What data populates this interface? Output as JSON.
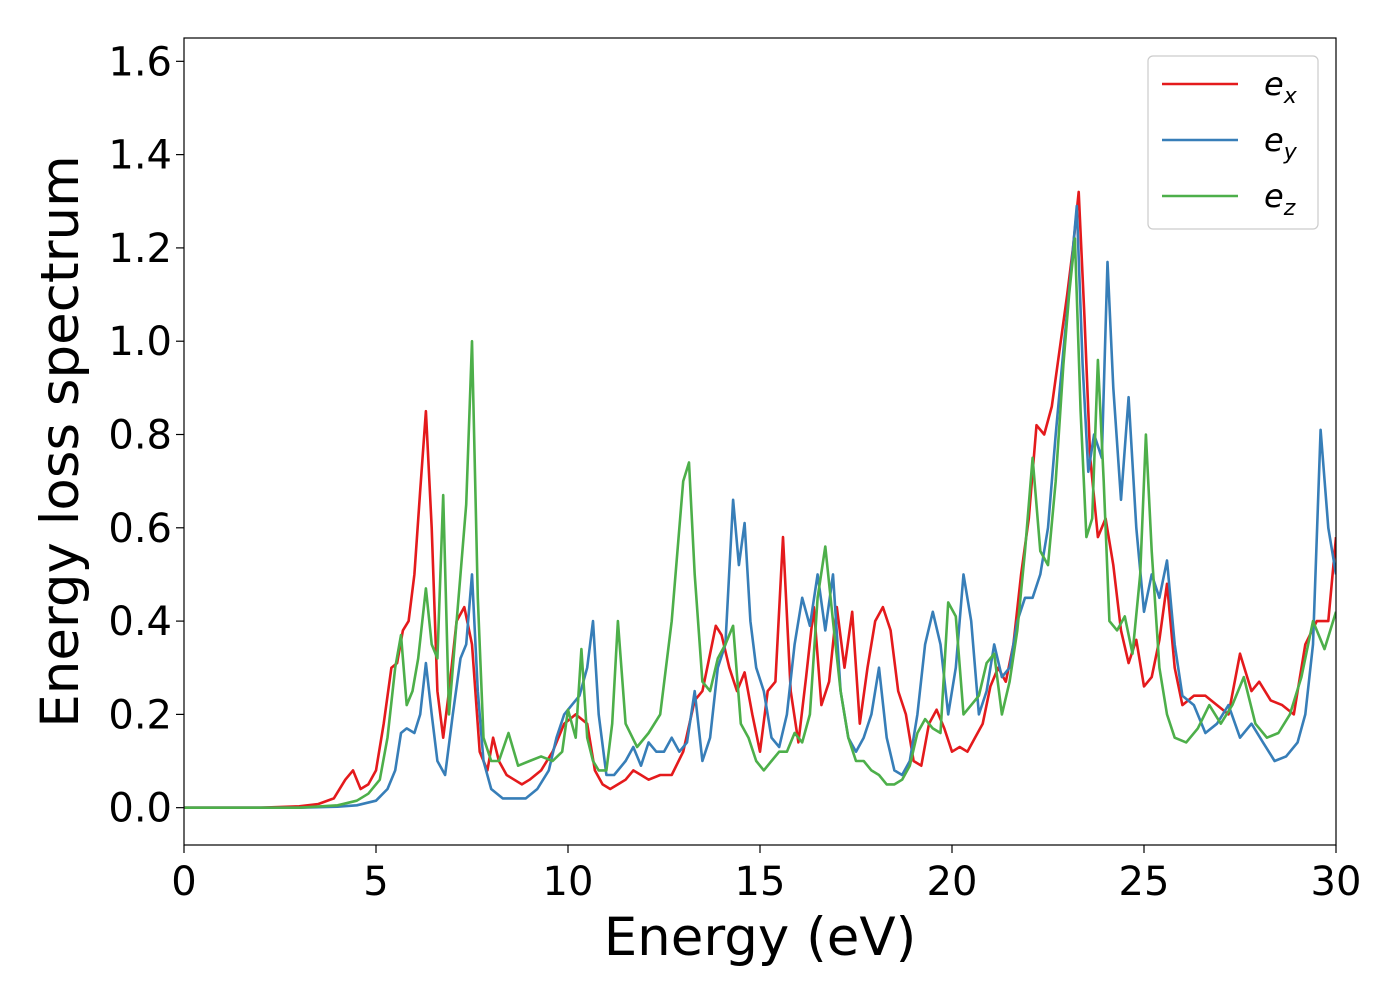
{
  "chart_data": {
    "type": "line",
    "xlabel": "Energy (eV)",
    "ylabel": "Energy loss spectrum",
    "xlim": [
      0,
      30
    ],
    "ylim": [
      -0.08,
      1.65
    ],
    "grid": false,
    "legend_position": "top-right",
    "xticks": [
      0,
      5,
      10,
      15,
      20,
      25,
      30
    ],
    "xtick_labels": [
      "0",
      "5",
      "10",
      "15",
      "20",
      "25",
      "30"
    ],
    "yticks": [
      0.0,
      0.2,
      0.4,
      0.6,
      0.8,
      1.0,
      1.2,
      1.4,
      1.6
    ],
    "ytick_labels": [
      "0.0",
      "0.2",
      "0.4",
      "0.6",
      "0.8",
      "1.0",
      "1.2",
      "1.4",
      "1.6"
    ],
    "series": [
      {
        "name": "e",
        "subscript": "x",
        "color": "#e41a1c",
        "x": [
          0,
          1,
          2,
          3,
          3.5,
          3.9,
          4.2,
          4.4,
          4.6,
          4.8,
          5.0,
          5.2,
          5.4,
          5.55,
          5.7,
          5.85,
          6.0,
          6.15,
          6.3,
          6.45,
          6.6,
          6.75,
          6.9,
          7.1,
          7.3,
          7.5,
          7.7,
          7.9,
          8.05,
          8.2,
          8.4,
          8.6,
          8.8,
          9.0,
          9.3,
          9.6,
          9.9,
          10.2,
          10.5,
          10.7,
          10.9,
          11.1,
          11.3,
          11.5,
          11.7,
          11.9,
          12.1,
          12.4,
          12.7,
          13.0,
          13.3,
          13.5,
          13.7,
          13.85,
          14.0,
          14.2,
          14.4,
          14.6,
          14.8,
          15.0,
          15.2,
          15.4,
          15.6,
          15.8,
          16.0,
          16.2,
          16.4,
          16.6,
          16.8,
          17.0,
          17.2,
          17.4,
          17.6,
          17.8,
          18.0,
          18.2,
          18.4,
          18.6,
          18.8,
          19.0,
          19.2,
          19.4,
          19.6,
          19.8,
          20.0,
          20.2,
          20.4,
          20.6,
          20.8,
          21.0,
          21.2,
          21.4,
          21.6,
          21.8,
          22.0,
          22.2,
          22.4,
          22.6,
          22.8,
          23.0,
          23.15,
          23.3,
          23.45,
          23.6,
          23.8,
          24.0,
          24.2,
          24.4,
          24.6,
          24.8,
          25.0,
          25.2,
          25.4,
          25.6,
          25.8,
          26.0,
          26.3,
          26.6,
          26.9,
          27.2,
          27.5,
          27.8,
          28.0,
          28.3,
          28.6,
          28.9,
          29.2,
          29.5,
          29.8,
          30.0
        ],
        "y": [
          0.0,
          0.0,
          0.0,
          0.003,
          0.008,
          0.02,
          0.06,
          0.08,
          0.04,
          0.05,
          0.08,
          0.18,
          0.3,
          0.31,
          0.38,
          0.4,
          0.5,
          0.68,
          0.85,
          0.6,
          0.25,
          0.15,
          0.25,
          0.4,
          0.43,
          0.35,
          0.12,
          0.08,
          0.15,
          0.1,
          0.07,
          0.06,
          0.05,
          0.06,
          0.08,
          0.12,
          0.18,
          0.2,
          0.18,
          0.08,
          0.05,
          0.04,
          0.05,
          0.06,
          0.08,
          0.07,
          0.06,
          0.07,
          0.07,
          0.12,
          0.23,
          0.25,
          0.33,
          0.39,
          0.37,
          0.3,
          0.25,
          0.29,
          0.2,
          0.12,
          0.25,
          0.27,
          0.58,
          0.25,
          0.14,
          0.28,
          0.43,
          0.22,
          0.27,
          0.43,
          0.3,
          0.42,
          0.18,
          0.3,
          0.4,
          0.43,
          0.38,
          0.25,
          0.2,
          0.1,
          0.09,
          0.18,
          0.21,
          0.17,
          0.12,
          0.13,
          0.12,
          0.15,
          0.18,
          0.26,
          0.3,
          0.27,
          0.35,
          0.5,
          0.62,
          0.82,
          0.8,
          0.86,
          0.98,
          1.1,
          1.2,
          1.32,
          1.05,
          0.75,
          0.58,
          0.62,
          0.52,
          0.38,
          0.31,
          0.36,
          0.26,
          0.28,
          0.36,
          0.48,
          0.3,
          0.22,
          0.24,
          0.24,
          0.22,
          0.2,
          0.33,
          0.25,
          0.27,
          0.23,
          0.22,
          0.2,
          0.35,
          0.4,
          0.4,
          0.58
        ]
      },
      {
        "name": "e",
        "subscript": "y",
        "color": "#377eb8",
        "x": [
          0,
          1,
          2,
          3,
          4,
          4.5,
          5.0,
          5.3,
          5.5,
          5.65,
          5.8,
          6.0,
          6.15,
          6.3,
          6.45,
          6.6,
          6.8,
          7.0,
          7.2,
          7.35,
          7.5,
          7.65,
          7.8,
          8.0,
          8.3,
          8.6,
          8.9,
          9.2,
          9.5,
          9.7,
          9.9,
          10.1,
          10.3,
          10.5,
          10.65,
          10.8,
          11.0,
          11.2,
          11.5,
          11.7,
          11.9,
          12.1,
          12.3,
          12.5,
          12.7,
          12.9,
          13.1,
          13.3,
          13.5,
          13.7,
          13.9,
          14.1,
          14.3,
          14.45,
          14.6,
          14.75,
          14.9,
          15.1,
          15.3,
          15.5,
          15.7,
          15.9,
          16.1,
          16.3,
          16.5,
          16.7,
          16.9,
          17.1,
          17.3,
          17.5,
          17.7,
          17.9,
          18.1,
          18.3,
          18.5,
          18.7,
          18.9,
          19.1,
          19.3,
          19.5,
          19.7,
          19.9,
          20.1,
          20.3,
          20.5,
          20.7,
          20.9,
          21.1,
          21.3,
          21.5,
          21.7,
          21.9,
          22.1,
          22.3,
          22.5,
          22.7,
          22.9,
          23.1,
          23.25,
          23.4,
          23.55,
          23.7,
          23.9,
          24.05,
          24.2,
          24.4,
          24.6,
          24.8,
          25.0,
          25.2,
          25.4,
          25.6,
          25.8,
          26.0,
          26.3,
          26.6,
          26.9,
          27.2,
          27.5,
          27.8,
          28.1,
          28.4,
          28.7,
          29.0,
          29.2,
          29.4,
          29.6,
          29.8,
          30.0
        ],
        "y": [
          0.0,
          0.0,
          0.0,
          0.0,
          0.002,
          0.005,
          0.015,
          0.04,
          0.08,
          0.16,
          0.17,
          0.16,
          0.2,
          0.31,
          0.2,
          0.1,
          0.07,
          0.2,
          0.32,
          0.35,
          0.5,
          0.25,
          0.1,
          0.04,
          0.02,
          0.02,
          0.02,
          0.04,
          0.08,
          0.15,
          0.2,
          0.22,
          0.24,
          0.3,
          0.4,
          0.2,
          0.07,
          0.07,
          0.1,
          0.13,
          0.09,
          0.14,
          0.12,
          0.12,
          0.15,
          0.12,
          0.14,
          0.25,
          0.1,
          0.15,
          0.3,
          0.35,
          0.66,
          0.52,
          0.61,
          0.4,
          0.3,
          0.25,
          0.15,
          0.13,
          0.2,
          0.35,
          0.45,
          0.39,
          0.5,
          0.38,
          0.5,
          0.25,
          0.15,
          0.12,
          0.15,
          0.2,
          0.3,
          0.15,
          0.08,
          0.07,
          0.1,
          0.2,
          0.35,
          0.42,
          0.35,
          0.2,
          0.3,
          0.5,
          0.4,
          0.2,
          0.25,
          0.35,
          0.28,
          0.3,
          0.4,
          0.45,
          0.45,
          0.5,
          0.6,
          0.8,
          0.98,
          1.15,
          1.29,
          0.95,
          0.72,
          0.8,
          0.75,
          1.17,
          0.9,
          0.66,
          0.88,
          0.6,
          0.42,
          0.5,
          0.45,
          0.53,
          0.35,
          0.24,
          0.22,
          0.16,
          0.18,
          0.22,
          0.15,
          0.18,
          0.14,
          0.1,
          0.11,
          0.14,
          0.2,
          0.35,
          0.81,
          0.6,
          0.5
        ]
      },
      {
        "name": "e",
        "subscript": "z",
        "color": "#4daf4a",
        "x": [
          0,
          1,
          2,
          3,
          4,
          4.5,
          4.8,
          5.1,
          5.3,
          5.5,
          5.65,
          5.8,
          5.95,
          6.1,
          6.3,
          6.45,
          6.6,
          6.75,
          6.9,
          7.05,
          7.2,
          7.35,
          7.5,
          7.65,
          7.8,
          8.0,
          8.2,
          8.45,
          8.7,
          9.0,
          9.3,
          9.6,
          9.85,
          10.0,
          10.2,
          10.35,
          10.5,
          10.65,
          10.8,
          11.0,
          11.15,
          11.3,
          11.5,
          11.8,
          12.1,
          12.4,
          12.7,
          13.0,
          13.15,
          13.3,
          13.5,
          13.7,
          13.9,
          14.1,
          14.3,
          14.5,
          14.7,
          14.9,
          15.1,
          15.3,
          15.5,
          15.7,
          15.9,
          16.1,
          16.3,
          16.5,
          16.7,
          16.9,
          17.1,
          17.3,
          17.5,
          17.7,
          17.9,
          18.1,
          18.3,
          18.5,
          18.7,
          18.9,
          19.1,
          19.3,
          19.5,
          19.7,
          19.9,
          20.1,
          20.3,
          20.5,
          20.7,
          20.9,
          21.1,
          21.3,
          21.5,
          21.7,
          21.9,
          22.1,
          22.3,
          22.5,
          22.7,
          22.9,
          23.05,
          23.2,
          23.35,
          23.5,
          23.65,
          23.8,
          23.95,
          24.1,
          24.3,
          24.5,
          24.7,
          24.9,
          25.05,
          25.2,
          25.4,
          25.6,
          25.8,
          26.1,
          26.4,
          26.7,
          27.0,
          27.3,
          27.6,
          27.9,
          28.2,
          28.5,
          28.8,
          29.1,
          29.4,
          29.7,
          30.0
        ],
        "y": [
          0.0,
          0.0,
          0.0,
          0.0,
          0.005,
          0.015,
          0.03,
          0.06,
          0.15,
          0.3,
          0.37,
          0.22,
          0.25,
          0.32,
          0.47,
          0.35,
          0.32,
          0.67,
          0.2,
          0.35,
          0.5,
          0.65,
          1.0,
          0.45,
          0.15,
          0.1,
          0.1,
          0.16,
          0.09,
          0.1,
          0.11,
          0.1,
          0.12,
          0.21,
          0.15,
          0.34,
          0.15,
          0.1,
          0.08,
          0.08,
          0.18,
          0.4,
          0.18,
          0.13,
          0.16,
          0.2,
          0.4,
          0.7,
          0.74,
          0.5,
          0.27,
          0.25,
          0.32,
          0.35,
          0.39,
          0.18,
          0.15,
          0.1,
          0.08,
          0.1,
          0.12,
          0.12,
          0.16,
          0.14,
          0.2,
          0.45,
          0.56,
          0.4,
          0.25,
          0.15,
          0.1,
          0.1,
          0.08,
          0.07,
          0.05,
          0.05,
          0.06,
          0.09,
          0.16,
          0.19,
          0.17,
          0.16,
          0.44,
          0.41,
          0.2,
          0.22,
          0.24,
          0.31,
          0.33,
          0.2,
          0.27,
          0.38,
          0.55,
          0.75,
          0.55,
          0.52,
          0.7,
          0.95,
          1.1,
          1.22,
          0.85,
          0.58,
          0.62,
          0.96,
          0.7,
          0.4,
          0.38,
          0.41,
          0.33,
          0.5,
          0.8,
          0.55,
          0.3,
          0.2,
          0.15,
          0.14,
          0.17,
          0.22,
          0.18,
          0.22,
          0.28,
          0.18,
          0.15,
          0.16,
          0.2,
          0.28,
          0.4,
          0.34,
          0.42
        ]
      }
    ]
  }
}
